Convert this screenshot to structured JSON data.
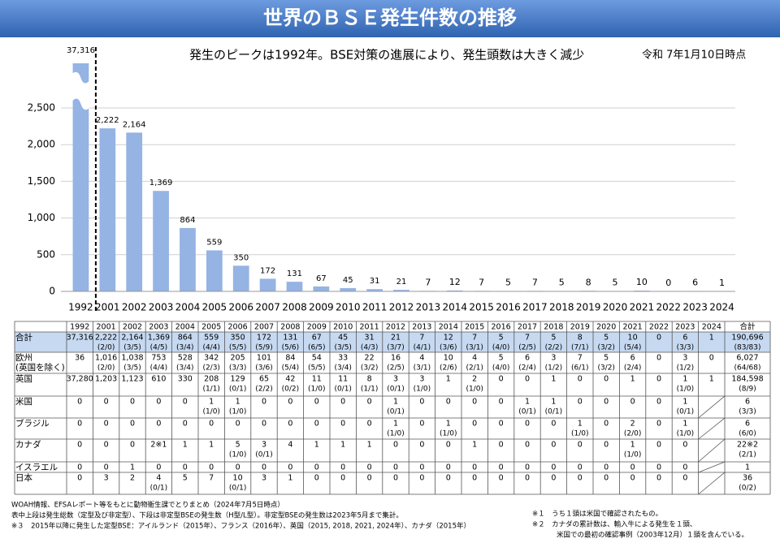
{
  "title": "世界のＢＳＥ発生件数の推移",
  "subtitle": "発生のピークは1992年。BSE対策の進展により、発生頭数は大きく減少",
  "as_of": "令和 7年1月10日時点",
  "chart_data": {
    "type": "bar",
    "color": "#95b3e3",
    "grid": true,
    "categories": [
      "1992",
      "2001",
      "2002",
      "2003",
      "2004",
      "2005",
      "2006",
      "2007",
      "2008",
      "2009",
      "2010",
      "2011",
      "2012",
      "2013",
      "2014",
      "2015",
      "2016",
      "2017",
      "2018",
      "2019",
      "2020",
      "2021",
      "2022",
      "2023",
      "2024"
    ],
    "values": [
      37316,
      2222,
      2164,
      1369,
      864,
      559,
      350,
      172,
      131,
      67,
      45,
      31,
      21,
      7,
      12,
      7,
      5,
      7,
      5,
      8,
      5,
      10,
      0,
      6,
      1
    ],
    "value_labels": [
      "37,316",
      "2,222",
      "2,164",
      "1,369",
      "864",
      "559",
      "350",
      "172",
      "131",
      "67",
      "45",
      "31",
      "21",
      "7",
      "12",
      "7",
      "5",
      "7",
      "5",
      "8",
      "5",
      "10",
      "0",
      "6",
      "1"
    ],
    "ylim": [
      0,
      2500
    ],
    "yticks": [
      0,
      500,
      {
        "value": 1000,
        "label": "1,000"
      },
      {
        "value": 1500,
        "label": "1,500"
      },
      {
        "value": 2000,
        "label": "2,000"
      },
      {
        "value": 2500,
        "label": "2,500"
      }
    ]
  },
  "table": {
    "header": [
      "1992",
      "2001",
      "2002",
      "2003",
      "2004",
      "2005",
      "2006",
      "2007",
      "2008",
      "2009",
      "2010",
      "2011",
      "2012",
      "2013",
      "2014",
      "2015",
      "2016",
      "2017",
      "2018",
      "2019",
      "2020",
      "2021",
      "2022",
      "2023",
      "2024",
      "合計"
    ],
    "rows": [
      {
        "label": [
          "合計"
        ],
        "cells": [
          [
            "37,316"
          ],
          [
            "2,222",
            "(2/0)"
          ],
          [
            "2,164",
            "(3/5)"
          ],
          [
            "1,369",
            "(4/5)"
          ],
          [
            "864",
            "(3/4)"
          ],
          [
            "559",
            "(4/4)"
          ],
          [
            "350",
            "(5/5)"
          ],
          [
            "172",
            "(5/9)"
          ],
          [
            "131",
            "(5/6)"
          ],
          [
            "67",
            "(6/5)"
          ],
          [
            "45",
            "(3/5)"
          ],
          [
            "31",
            "(4/3)"
          ],
          [
            "21",
            "(3/7)"
          ],
          [
            "7",
            "(4/1)"
          ],
          [
            "12",
            "(3/6)"
          ],
          [
            "7",
            "(3/1)"
          ],
          [
            "5",
            "(4/0)"
          ],
          [
            "7",
            "(2/5)"
          ],
          [
            "5",
            "(2/2)"
          ],
          [
            "8",
            "(7/1)"
          ],
          [
            "5",
            "(3/2)"
          ],
          [
            "10",
            "(5/4)"
          ],
          [
            "0"
          ],
          [
            "6",
            "(3/3)"
          ],
          [
            "1"
          ],
          [
            "190,696",
            "(83/83)"
          ]
        ]
      },
      {
        "label": [
          "欧州",
          "(英国を除く)"
        ],
        "cells": [
          [
            "36"
          ],
          [
            "1,016",
            "(2/0)"
          ],
          [
            "1,038",
            "(3/5)"
          ],
          [
            "753",
            "(4/4)"
          ],
          [
            "528",
            "(3/4)"
          ],
          [
            "342",
            "(2/3)"
          ],
          [
            "205",
            "(3/3)"
          ],
          [
            "101",
            "(3/6)"
          ],
          [
            "84",
            "(5/4)"
          ],
          [
            "54",
            "(5/5)"
          ],
          [
            "33",
            "(3/4)"
          ],
          [
            "22",
            "(3/2)"
          ],
          [
            "16",
            "(2/5)"
          ],
          [
            "4",
            "(3/1)"
          ],
          [
            "10",
            "(2/6)"
          ],
          [
            "4",
            "(2/1)"
          ],
          [
            "5",
            "(4/0)"
          ],
          [
            "6",
            "(2/4)"
          ],
          [
            "3",
            "(1/2)"
          ],
          [
            "7",
            "(6/1)"
          ],
          [
            "5",
            "(3/2)"
          ],
          [
            "6",
            "(2/4)"
          ],
          [
            "0"
          ],
          [
            "3",
            "(1/2)"
          ],
          [
            "0"
          ],
          [
            "6,027",
            "(64/68)"
          ]
        ]
      },
      {
        "label": [
          "英国"
        ],
        "cells": [
          [
            "37,280"
          ],
          [
            "1,203"
          ],
          [
            "1,123"
          ],
          [
            "610"
          ],
          [
            "330"
          ],
          [
            "208",
            "(1/1)"
          ],
          [
            "129",
            "(0/1)"
          ],
          [
            "65",
            "(2/2)"
          ],
          [
            "42",
            "(0/2)"
          ],
          [
            "11",
            "(1/0)"
          ],
          [
            "11",
            "(0/1)"
          ],
          [
            "8",
            "(1/1)"
          ],
          [
            "3",
            "(0/1)"
          ],
          [
            "3",
            "(1/0)"
          ],
          [
            "1"
          ],
          [
            "2",
            "(1/0)"
          ],
          [
            "0"
          ],
          [
            "0"
          ],
          [
            "1"
          ],
          [
            "0"
          ],
          [
            "0"
          ],
          [
            "1"
          ],
          [
            "0"
          ],
          [
            "1",
            "(1/0)"
          ],
          [
            "1"
          ],
          [
            "184,598",
            "(8/9)"
          ]
        ]
      },
      {
        "label": [
          "米国"
        ],
        "cells": [
          [
            "0"
          ],
          [
            "0"
          ],
          [
            "0"
          ],
          [
            "0"
          ],
          [
            "0"
          ],
          [
            "1",
            "(1/0)"
          ],
          [
            "1",
            "(1/0)"
          ],
          [
            "0"
          ],
          [
            "0"
          ],
          [
            "0"
          ],
          [
            "0"
          ],
          [
            "0"
          ],
          [
            "1",
            "(0/1)"
          ],
          [
            "0"
          ],
          [
            "0"
          ],
          [
            "0"
          ],
          [
            "0"
          ],
          [
            "1",
            "(0/1)"
          ],
          [
            "1",
            "(0/1)"
          ],
          [
            "0"
          ],
          [
            "0"
          ],
          [
            "0"
          ],
          [
            "0"
          ],
          [
            "1",
            "(0/1)"
          ],
          null,
          [
            "6",
            "(3/3)"
          ]
        ]
      },
      {
        "label": [
          "ブラジル"
        ],
        "cells": [
          [
            "0"
          ],
          [
            "0"
          ],
          [
            "0"
          ],
          [
            "0"
          ],
          [
            "0"
          ],
          [
            "0"
          ],
          [
            "0"
          ],
          [
            "0"
          ],
          [
            "0"
          ],
          [
            "0"
          ],
          [
            "0"
          ],
          [
            "0"
          ],
          [
            "1",
            "(1/0)"
          ],
          [
            "0"
          ],
          [
            "1",
            "(1/0)"
          ],
          [
            "0"
          ],
          [
            "0"
          ],
          [
            "0"
          ],
          [
            "0"
          ],
          [
            "1",
            "(1/0)"
          ],
          [
            "0"
          ],
          [
            "2",
            "(2/0)"
          ],
          [
            "0"
          ],
          [
            "1",
            "(1/0)"
          ],
          null,
          [
            "6",
            "(6/0)"
          ]
        ]
      },
      {
        "label": [
          "カナダ"
        ],
        "cells": [
          [
            "0"
          ],
          [
            "0"
          ],
          [
            "0"
          ],
          [
            "2※1"
          ],
          [
            "1"
          ],
          [
            "1"
          ],
          [
            "5",
            "(1/0)"
          ],
          [
            "3",
            "(0/1)"
          ],
          [
            "4"
          ],
          [
            "1"
          ],
          [
            "1"
          ],
          [
            "1"
          ],
          [
            "0"
          ],
          [
            "0"
          ],
          [
            "0"
          ],
          [
            "1"
          ],
          [
            "0"
          ],
          [
            "0"
          ],
          [
            "0"
          ],
          [
            "0"
          ],
          [
            "0"
          ],
          [
            "1",
            "(1/0)"
          ],
          [
            "0"
          ],
          [
            "0"
          ],
          null,
          [
            "22※2",
            "(2/1)"
          ]
        ]
      },
      {
        "label": [
          "イスラエル"
        ],
        "cells": [
          [
            "0"
          ],
          [
            "0"
          ],
          [
            "1"
          ],
          [
            "0"
          ],
          [
            "0"
          ],
          [
            "0"
          ],
          [
            "0"
          ],
          [
            "0"
          ],
          [
            "0"
          ],
          [
            "0"
          ],
          [
            "0"
          ],
          [
            "0"
          ],
          [
            "0"
          ],
          [
            "0"
          ],
          [
            "0"
          ],
          [
            "0"
          ],
          [
            "0"
          ],
          [
            "0"
          ],
          [
            "0"
          ],
          [
            "0"
          ],
          [
            "0"
          ],
          [
            "0"
          ],
          [
            "0"
          ],
          [
            "0"
          ],
          null,
          [
            "1"
          ]
        ]
      },
      {
        "label": [
          "日本"
        ],
        "cells": [
          [
            "0"
          ],
          [
            "3"
          ],
          [
            "2"
          ],
          [
            "4",
            "(0/1)"
          ],
          [
            "5"
          ],
          [
            "7"
          ],
          [
            "10",
            "(0/1)"
          ],
          [
            "3"
          ],
          [
            "1"
          ],
          [
            "0"
          ],
          [
            "0"
          ],
          [
            "0"
          ],
          [
            "0"
          ],
          [
            "0"
          ],
          [
            "0"
          ],
          [
            "0"
          ],
          [
            "0"
          ],
          [
            "0"
          ],
          [
            "0"
          ],
          [
            "0"
          ],
          [
            "0"
          ],
          [
            "0"
          ],
          [
            "0"
          ],
          [
            "0"
          ],
          null,
          [
            "36",
            "(0/2)"
          ]
        ]
      }
    ]
  },
  "notes": {
    "left": [
      "WOAH情報、EFSAレポート等をもとに動物衛生課でとりまとめ（2024年7月5日時点）",
      "表中上段は発生総数（定型及び非定型）、下段は非定型BSEの発生数（H型/L型）。非定型BSEの発生数は2023年5月まで集計。",
      "※３　2015年以降に発生した定型BSE：アイルランド（2015年）、フランス（2016年）、英国（2015, 2018, 2021, 2024年）、カナダ（2015年）"
    ],
    "right": [
      "※１　うち１頭は米国で確認されたもの。",
      "※２　カナダの累計数は、輸入牛による発生を１頭、",
      "米国での最初の確認事例（2003年12月）１頭を含んでいる。"
    ]
  }
}
